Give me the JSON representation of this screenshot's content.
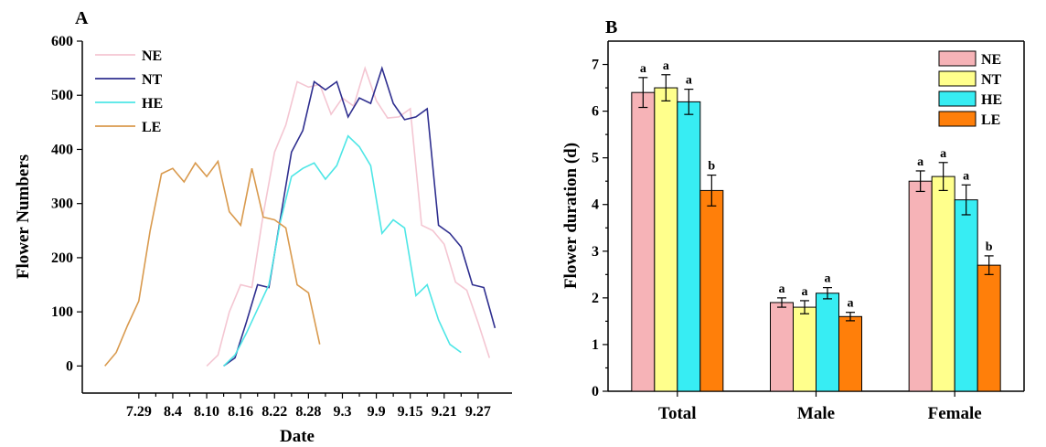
{
  "chart_data": [
    {
      "type": "line",
      "panel_label": "A",
      "xlabel": "Date",
      "ylabel": "Flower Numbers",
      "ylim": [
        -50,
        600
      ],
      "yticks": [
        0,
        100,
        200,
        300,
        400,
        500,
        600
      ],
      "x_tick_labels": [
        "7.29",
        "8.4",
        "8.10",
        "8.16",
        "8.22",
        "8.28",
        "9.3",
        "9.9",
        "9.15",
        "9.21",
        "9.27"
      ],
      "x_tick_dates": [
        "07-29",
        "08-04",
        "08-10",
        "08-16",
        "08-22",
        "08-28",
        "09-03",
        "09-09",
        "09-15",
        "09-21",
        "09-27"
      ],
      "legend_position": "top-left",
      "grid": false,
      "series": [
        {
          "name": "NE",
          "color": "#f4c6d2",
          "x": [
            "08-10",
            "08-12",
            "08-14",
            "08-16",
            "08-18",
            "08-20",
            "08-22",
            "08-24",
            "08-26",
            "08-28",
            "08-30",
            "09-01",
            "09-03",
            "09-05",
            "09-07",
            "09-09",
            "09-11",
            "09-13",
            "09-15",
            "09-17",
            "09-19",
            "09-21",
            "09-23",
            "09-25",
            "09-27",
            "09-29"
          ],
          "y": [
            0,
            20,
            100,
            150,
            145,
            280,
            395,
            445,
            525,
            515,
            520,
            465,
            495,
            480,
            550,
            490,
            458,
            460,
            475,
            260,
            250,
            225,
            155,
            140,
            80,
            15
          ]
        },
        {
          "name": "NT",
          "color": "#2f2f8f",
          "x": [
            "08-13",
            "08-15",
            "08-17",
            "08-19",
            "08-21",
            "08-23",
            "08-25",
            "08-27",
            "08-29",
            "08-31",
            "09-02",
            "09-04",
            "09-06",
            "09-08",
            "09-10",
            "09-12",
            "09-14",
            "09-16",
            "09-18",
            "09-20",
            "09-22",
            "09-24",
            "09-26",
            "09-28",
            "09-30"
          ],
          "y": [
            0,
            15,
            80,
            150,
            145,
            270,
            395,
            435,
            525,
            510,
            525,
            460,
            495,
            485,
            550,
            485,
            455,
            460,
            475,
            260,
            245,
            220,
            150,
            145,
            70
          ]
        },
        {
          "name": "HE",
          "color": "#4ee6e6",
          "x": [
            "08-13",
            "08-15",
            "08-17",
            "08-19",
            "08-21",
            "08-23",
            "08-25",
            "08-27",
            "08-29",
            "08-31",
            "09-02",
            "09-04",
            "09-06",
            "09-08",
            "09-10",
            "09-12",
            "09-14",
            "09-16",
            "09-18",
            "09-20",
            "09-22",
            "09-24"
          ],
          "y": [
            0,
            20,
            60,
            105,
            150,
            265,
            350,
            365,
            375,
            345,
            370,
            425,
            405,
            370,
            245,
            270,
            255,
            130,
            150,
            85,
            40,
            25
          ]
        },
        {
          "name": "LE",
          "color": "#d99a4e",
          "x": [
            "07-23",
            "07-25",
            "07-27",
            "07-29",
            "07-31",
            "08-02",
            "08-04",
            "08-06",
            "08-08",
            "08-10",
            "08-12",
            "08-14",
            "08-16",
            "08-18",
            "08-20",
            "08-22",
            "08-24",
            "08-26",
            "08-28",
            "08-30"
          ],
          "y": [
            0,
            25,
            75,
            120,
            250,
            355,
            365,
            340,
            375,
            350,
            378,
            285,
            260,
            365,
            275,
            270,
            255,
            150,
            135,
            40
          ]
        }
      ]
    },
    {
      "type": "bar",
      "panel_label": "B",
      "xlabel": "",
      "ylabel": "Flower duration (d)",
      "ylim": [
        0,
        7.5
      ],
      "yticks": [
        0,
        1,
        2,
        3,
        4,
        5,
        6,
        7
      ],
      "categories": [
        "Total",
        "Male",
        "Female"
      ],
      "legend_position": "top-right",
      "grid": false,
      "series": [
        {
          "name": "NE",
          "color": "#f6b3b7",
          "values": [
            6.4,
            1.9,
            4.5
          ],
          "errors": [
            0.32,
            0.1,
            0.22
          ],
          "labels": [
            "a",
            "a",
            "a"
          ]
        },
        {
          "name": "NT",
          "color": "#ffff8c",
          "values": [
            6.5,
            1.8,
            4.6
          ],
          "errors": [
            0.28,
            0.14,
            0.3
          ],
          "labels": [
            "a",
            "a",
            "a"
          ]
        },
        {
          "name": "HE",
          "color": "#37edf3",
          "values": [
            6.2,
            2.1,
            4.1
          ],
          "errors": [
            0.27,
            0.12,
            0.32
          ],
          "labels": [
            "a",
            "a",
            "a"
          ]
        },
        {
          "name": "LE",
          "color": "#ff7f0a",
          "values": [
            4.3,
            1.6,
            2.7
          ],
          "errors": [
            0.33,
            0.09,
            0.2
          ],
          "labels": [
            "b",
            "a",
            "b"
          ]
        }
      ]
    }
  ]
}
